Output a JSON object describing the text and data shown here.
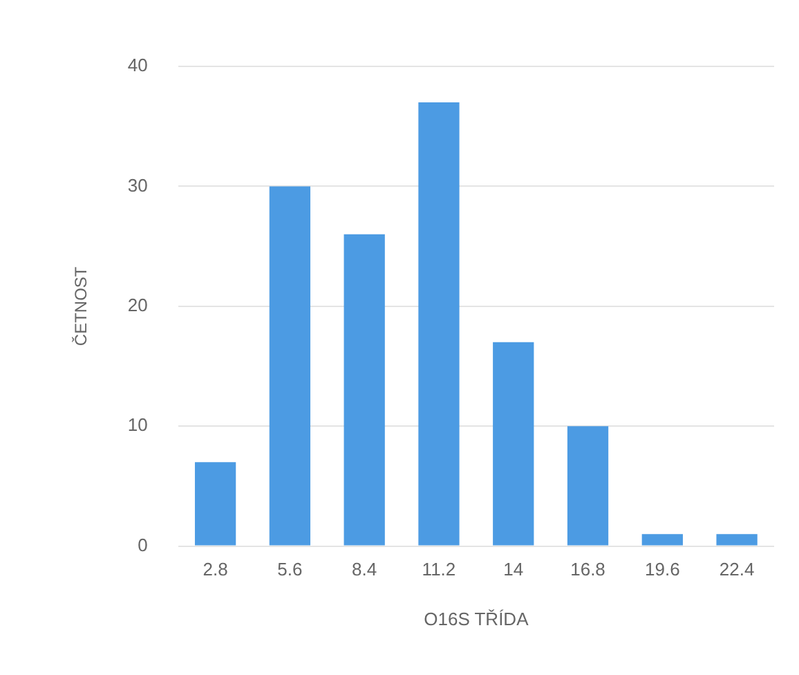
{
  "chart_data": {
    "type": "bar",
    "xlabel": "O16S TŘÍDA",
    "ylabel": "ČETNOST",
    "categories": [
      "2.8",
      "5.6",
      "8.4",
      "11.2",
      "14",
      "16.8",
      "19.6",
      "22.4"
    ],
    "values": [
      7,
      30,
      26,
      37,
      17,
      10,
      1,
      1
    ],
    "color": "#4c9be3",
    "ylim": [
      0,
      40
    ],
    "yticks": [
      0,
      10,
      20,
      30,
      40
    ],
    "grid": "y",
    "legend": false
  }
}
